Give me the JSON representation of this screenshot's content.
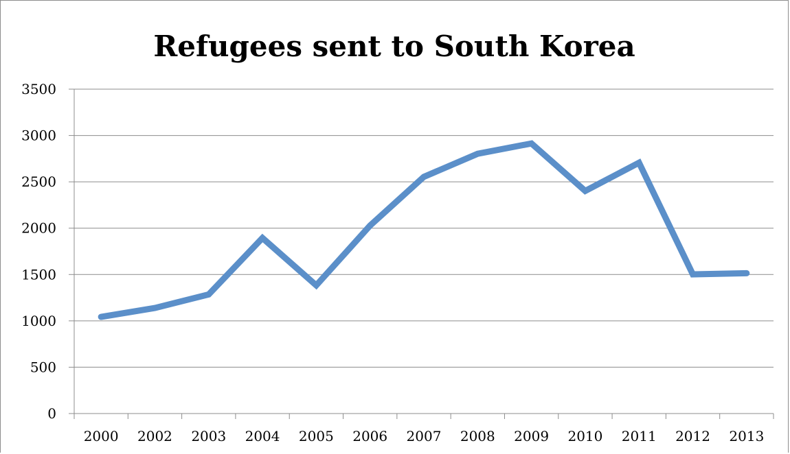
{
  "chart_data": {
    "type": "line",
    "title": "Refugees sent to South Korea",
    "xlabel": "",
    "ylabel": "",
    "categories": [
      "2000",
      "2002",
      "2003",
      "2004",
      "2005",
      "2006",
      "2007",
      "2008",
      "2009",
      "2010",
      "2011",
      "2012",
      "2013"
    ],
    "series": [
      {
        "values": [
          1043,
          1139,
          1285,
          1894,
          1383,
          2028,
          2554,
          2803,
          2914,
          2402,
          2706,
          1502,
          1514
        ],
        "color": "#5b8fc9"
      }
    ],
    "ylim": [
      0,
      3500
    ],
    "yticks": [
      "0",
      "500",
      "1000",
      "1500",
      "2000",
      "2500",
      "3000",
      "3500"
    ],
    "grid": true,
    "legend": "none"
  }
}
